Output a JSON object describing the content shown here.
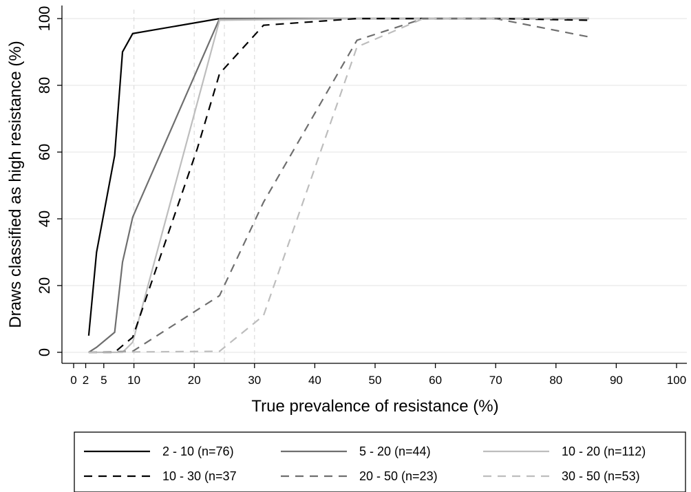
{
  "chart_data": {
    "type": "line",
    "title": "",
    "xlabel": "True prevalence of resistance (%)",
    "ylabel": "Draws classified as high resistance (%)",
    "xlim": [
      -2,
      102
    ],
    "ylim": [
      -2,
      103
    ],
    "xticks": [
      0,
      2,
      5,
      10,
      20,
      30,
      40,
      50,
      60,
      70,
      80,
      90,
      100
    ],
    "yticks": [
      0,
      20,
      40,
      60,
      80,
      100
    ],
    "grid": "horizontal",
    "reference_lines_x": [
      10,
      20,
      25,
      30
    ],
    "legend_position": "bottom",
    "series": [
      {
        "name": "2 - 10 (n=76)",
        "color": "#000000",
        "dash": "solid",
        "points": [
          [
            2.5,
            5
          ],
          [
            3.8,
            30
          ],
          [
            6.8,
            59
          ],
          [
            8.1,
            90
          ],
          [
            9.8,
            95.5
          ],
          [
            24.2,
            100
          ],
          [
            47,
            100
          ],
          [
            58,
            100
          ],
          [
            70,
            100
          ],
          [
            85.5,
            100
          ]
        ]
      },
      {
        "name": "5 - 20 (n=44)",
        "color": "#6e6e6e",
        "dash": "solid",
        "points": [
          [
            2.5,
            0
          ],
          [
            3.8,
            1.5
          ],
          [
            6.8,
            6
          ],
          [
            8.1,
            27
          ],
          [
            9.8,
            40.5
          ],
          [
            24.2,
            100
          ],
          [
            47,
            100
          ],
          [
            58,
            100
          ],
          [
            70,
            100
          ],
          [
            85.5,
            100
          ]
        ]
      },
      {
        "name": "10 - 20 (n=112)",
        "color": "#bdbdbd",
        "dash": "solid",
        "points": [
          [
            2.5,
            0
          ],
          [
            3.8,
            0
          ],
          [
            6.8,
            0
          ],
          [
            8.1,
            0
          ],
          [
            9.8,
            3
          ],
          [
            24.2,
            99.5
          ],
          [
            47,
            100
          ],
          [
            58,
            100
          ],
          [
            70,
            100
          ],
          [
            85.5,
            100
          ]
        ]
      },
      {
        "name": "10 - 30 (n=37",
        "color": "#000000",
        "dash": "dashed",
        "points": [
          [
            2.5,
            0
          ],
          [
            6.8,
            0
          ],
          [
            8.1,
            2
          ],
          [
            9.8,
            4.5
          ],
          [
            20.5,
            61
          ],
          [
            24.2,
            83.5
          ],
          [
            31.5,
            98
          ],
          [
            47,
            100
          ],
          [
            58,
            100
          ],
          [
            70,
            100
          ],
          [
            85.5,
            99.5
          ]
        ]
      },
      {
        "name": "20 - 50 (n=23)",
        "color": "#6e6e6e",
        "dash": "dashed",
        "points": [
          [
            2.5,
            0
          ],
          [
            9.8,
            0.3
          ],
          [
            24.2,
            17
          ],
          [
            31.5,
            45
          ],
          [
            47,
            93.5
          ],
          [
            58,
            100
          ],
          [
            70,
            100
          ],
          [
            85.5,
            94.5
          ]
        ]
      },
      {
        "name": "30 - 50 (n=53)",
        "color": "#bdbdbd",
        "dash": "dashed",
        "points": [
          [
            2.5,
            0
          ],
          [
            24.2,
            0.3
          ],
          [
            31.5,
            11
          ],
          [
            47,
            91.5
          ],
          [
            58,
            100
          ],
          [
            70,
            100
          ],
          [
            85.5,
            100
          ]
        ]
      }
    ]
  }
}
